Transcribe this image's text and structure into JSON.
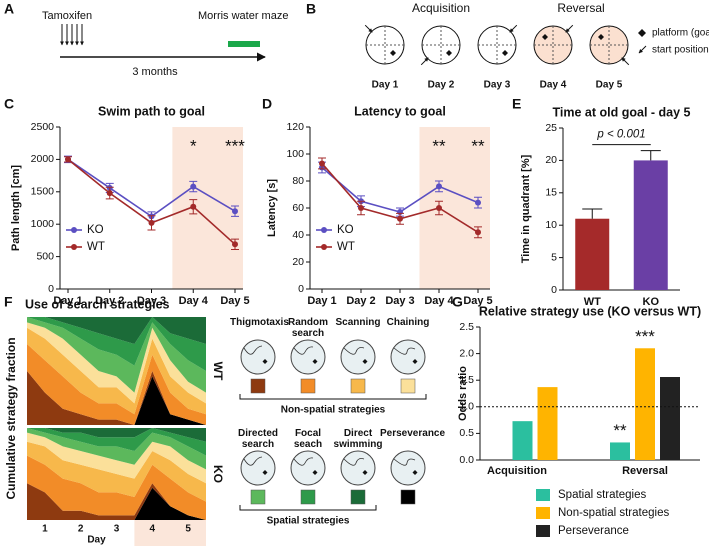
{
  "panel_labels": [
    "A",
    "B",
    "C",
    "D",
    "E",
    "F",
    "G"
  ],
  "timeline": {
    "start": "Tamoxifen",
    "end": "Morris water maze",
    "duration": "3 months"
  },
  "maze": {
    "phases": [
      "Acquisition",
      "Reversal"
    ],
    "days": [
      "Day 1",
      "Day 2",
      "Day 3",
      "Day 4",
      "Day 5"
    ],
    "legend": [
      "platform (goal)",
      "start position"
    ]
  },
  "chart_data": [
    {
      "type": "line",
      "title": "Swim path to goal",
      "ylabel": "Path length [cm]",
      "categories": [
        "Day 1",
        "Day 2",
        "Day 3",
        "Day 4",
        "Day 5"
      ],
      "ylim": [
        0,
        2500
      ],
      "yticks": [
        0,
        500,
        1000,
        1500,
        2000,
        2500
      ],
      "highlight": [
        "Day 4",
        "Day 5"
      ],
      "highlight_color": "#fbe6da",
      "legend": "lower left",
      "series": [
        {
          "name": "KO",
          "color": "#5b4fc2",
          "values": [
            2000,
            1560,
            1120,
            1580,
            1200
          ],
          "errors": [
            50,
            70,
            70,
            80,
            80
          ]
        },
        {
          "name": "WT",
          "color": "#a32a2a",
          "values": [
            2000,
            1480,
            1020,
            1270,
            690
          ],
          "errors": [
            40,
            90,
            110,
            110,
            80
          ]
        }
      ],
      "annotations": [
        {
          "text": "*",
          "category": "Day 4"
        },
        {
          "text": "***",
          "category": "Day 5"
        }
      ]
    },
    {
      "type": "line",
      "title": "Latency to goal",
      "ylabel": "Latency [s]",
      "categories": [
        "Day 1",
        "Day 2",
        "Day 3",
        "Day 4",
        "Day 5"
      ],
      "ylim": [
        0,
        120
      ],
      "yticks": [
        0,
        20,
        40,
        60,
        80,
        100,
        120
      ],
      "highlight": [
        "Day 4",
        "Day 5"
      ],
      "highlight_color": "#fbe6da",
      "legend": "lower left",
      "series": [
        {
          "name": "KO",
          "color": "#5b4fc2",
          "values": [
            90,
            65,
            57,
            76,
            64
          ],
          "errors": [
            4,
            4,
            3,
            4,
            4
          ]
        },
        {
          "name": "WT",
          "color": "#a32a2a",
          "values": [
            93,
            60,
            52,
            60,
            42
          ],
          "errors": [
            4,
            5,
            4,
            5,
            4
          ]
        }
      ],
      "annotations": [
        {
          "text": "**",
          "category": "Day 4"
        },
        {
          "text": "**",
          "category": "Day 5"
        }
      ]
    },
    {
      "type": "bar",
      "title": "Time at old goal - day 5",
      "ylabel": "Time in quadrant [%]",
      "categories": [
        "WT",
        "KO"
      ],
      "values": [
        11,
        20
      ],
      "errors": [
        1.5,
        1.5
      ],
      "colors": [
        "#a52a2a",
        "#6a3fa5"
      ],
      "ylim": [
        0,
        25
      ],
      "yticks": [
        0,
        5,
        10,
        15,
        20,
        25
      ],
      "annotation": "p < 0.001"
    },
    {
      "type": "stacked_area",
      "title": "Use of search strategies",
      "ylabel": "Cumulative strategy fraction",
      "xlabel": "Day",
      "x": [
        0.5,
        1,
        1.5,
        2,
        2.5,
        3,
        3.5,
        4,
        4.5,
        5,
        5.5
      ],
      "xlim": [
        0.5,
        5.5
      ],
      "ylim": [
        0,
        1
      ],
      "xticks": [
        1,
        2,
        3,
        4,
        5
      ],
      "highlight": [
        3.5,
        5.5
      ],
      "highlight_color": "#fbe6da",
      "panels": [
        "WT",
        "KO"
      ],
      "strategy_groups": [
        {
          "title": "Non-spatial strategies",
          "strategies": [
            {
              "name": "Thigmotaxis",
              "color": "#8e3a10",
              "values": [
                [
                  0.5,
                  0.3,
                  0.15,
                  0.1,
                  0.05,
                  0.05,
                  0,
                  0.05,
                  0,
                  0,
                  0
                ],
                [
                  0.4,
                  0.3,
                  0.1,
                  0.1,
                  0.05,
                  0.05,
                  0.05,
                  0.05,
                  0,
                  0,
                  0
                ]
              ]
            },
            {
              "name": "Random search",
              "color": "#f28c28",
              "values": [
                [
                  0.25,
                  0.3,
                  0.3,
                  0.2,
                  0.15,
                  0.15,
                  0.1,
                  0.15,
                  0.2,
                  0.1,
                  0.1
                ],
                [
                  0.3,
                  0.3,
                  0.35,
                  0.3,
                  0.25,
                  0.25,
                  0.2,
                  0.2,
                  0.3,
                  0.25,
                  0.2
                ]
              ]
            },
            {
              "name": "Scanning",
              "color": "#f7b84b",
              "values": [
                [
                  0.15,
                  0.2,
                  0.2,
                  0.2,
                  0.15,
                  0.15,
                  0.1,
                  0.15,
                  0.15,
                  0.15,
                  0.1
                ],
                [
                  0.15,
                  0.2,
                  0.2,
                  0.2,
                  0.25,
                  0.2,
                  0.2,
                  0.15,
                  0.2,
                  0.2,
                  0.2
                ]
              ]
            },
            {
              "name": "Chaining",
              "color": "#fbe09a",
              "values": [
                [
                  0.05,
                  0.1,
                  0.15,
                  0.15,
                  0.15,
                  0.1,
                  0.1,
                  0.1,
                  0.15,
                  0.1,
                  0.1
                ],
                [
                  0.1,
                  0.1,
                  0.15,
                  0.15,
                  0.15,
                  0.15,
                  0.15,
                  0.1,
                  0.15,
                  0.15,
                  0.15
                ]
              ]
            }
          ]
        },
        {
          "title": "Spatial strategies",
          "strategies": [
            {
              "name": "Directed search",
              "color": "#5cb85c",
              "values": [
                [
                  0.05,
                  0.05,
                  0.1,
                  0.15,
                  0.2,
                  0.2,
                  0.25,
                  0.05,
                  0.15,
                  0.2,
                  0.2
                ],
                [
                  0.05,
                  0.05,
                  0.1,
                  0.1,
                  0.1,
                  0.15,
                  0.15,
                  0.1,
                  0.1,
                  0.15,
                  0.15
                ]
              ]
            },
            {
              "name": "Focal seach",
              "color": "#2e9a4a",
              "values": [
                [
                  0,
                  0.05,
                  0.05,
                  0.1,
                  0.15,
                  0.15,
                  0.2,
                  0.05,
                  0.1,
                  0.2,
                  0.25
                ],
                [
                  0,
                  0.05,
                  0.05,
                  0.1,
                  0.1,
                  0.1,
                  0.15,
                  0.05,
                  0.05,
                  0.1,
                  0.15
                ]
              ]
            },
            {
              "name": "Direct swimming",
              "color": "#1b6b38",
              "values": [
                [
                  0,
                  0,
                  0.05,
                  0.1,
                  0.15,
                  0.2,
                  0.25,
                  0,
                  0.15,
                  0.2,
                  0.25
                ],
                [
                  0,
                  0,
                  0.05,
                  0.05,
                  0.1,
                  0.1,
                  0.1,
                  0,
                  0.05,
                  0.1,
                  0.15
                ]
              ]
            }
          ]
        },
        {
          "strategies": [
            {
              "name": "Perseverance",
              "color": "#000000",
              "values": [
                [
                  0,
                  0,
                  0,
                  0,
                  0,
                  0,
                  0,
                  0.45,
                  0.1,
                  0.05,
                  0
                ],
                [
                  0,
                  0,
                  0,
                  0,
                  0,
                  0,
                  0,
                  0.35,
                  0.15,
                  0.05,
                  0
                ]
              ]
            }
          ]
        }
      ]
    },
    {
      "type": "grouped_bar",
      "title": "Relative strategy use (KO versus WT)",
      "ylabel": "Odds ratio",
      "categories": [
        "Acquisition",
        "Reversal"
      ],
      "ylim": [
        0,
        2.5
      ],
      "yticks": [
        {
          "value": 0,
          "label": "0.0"
        },
        0.5,
        {
          "value": 1,
          "label": "1.0"
        },
        1.5,
        {
          "value": 2,
          "label": "2.0"
        },
        2.5
      ],
      "reference_line": 1,
      "series": [
        {
          "name": "Spatial strategies",
          "color": "#2bbf9f",
          "values": [
            0.73,
            0.33
          ]
        },
        {
          "name": "Non-spatial strategies",
          "color": "#ffb400",
          "values": [
            1.37,
            2.1
          ]
        },
        {
          "name": "Perseverance",
          "color": "#222222",
          "values": [
            null,
            1.56
          ]
        }
      ],
      "annotations": [
        {
          "text": "**",
          "category": "Reversal",
          "series": "Spatial strategies"
        },
        {
          "text": "***",
          "category": "Reversal",
          "series": "Non-spatial strategies"
        }
      ]
    }
  ]
}
